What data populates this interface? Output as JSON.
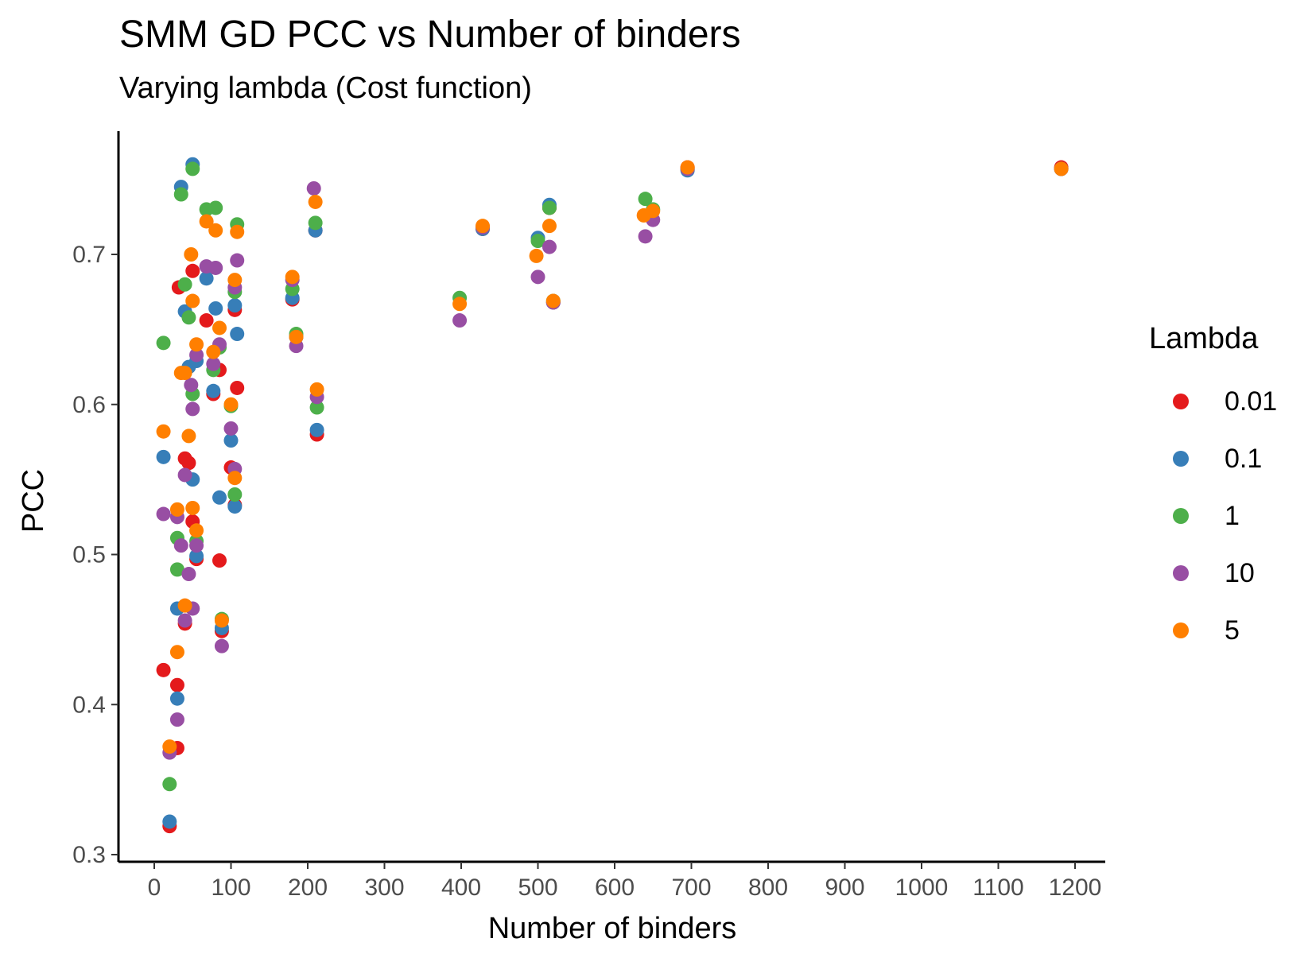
{
  "chart_data": {
    "type": "scatter",
    "title": "SMM GD PCC vs Number of binders",
    "subtitle": "Varying lambda (Cost function)",
    "xlabel": "Number of binders",
    "ylabel": "PCC",
    "xlim": [
      -40,
      1230
    ],
    "ylim": [
      0.29,
      0.79
    ],
    "xticks": [
      0,
      100,
      200,
      300,
      400,
      500,
      600,
      700,
      800,
      900,
      1000,
      1100,
      1200
    ],
    "xtick_labels": [
      "0",
      "100",
      "200",
      "300",
      "400",
      "500",
      "600",
      "700",
      "800",
      "900",
      "1000",
      "1100",
      "1200"
    ],
    "yticks": [
      0.3,
      0.4,
      0.5,
      0.6,
      0.7
    ],
    "ytick_labels": [
      "0.3",
      "0.4",
      "0.5",
      "0.6",
      "0.7"
    ],
    "grid": false,
    "legend_title": "Lambda",
    "legend_position": "right",
    "series": [
      {
        "name": "0.01",
        "color": "#E41A1C",
        "points": [
          [
            12,
            0.423
          ],
          [
            20,
            0.319
          ],
          [
            30,
            0.413
          ],
          [
            30,
            0.371
          ],
          [
            32,
            0.678
          ],
          [
            40,
            0.564
          ],
          [
            40,
            0.454
          ],
          [
            45,
            0.561
          ],
          [
            50,
            0.689
          ],
          [
            50,
            0.522
          ],
          [
            55,
            0.497
          ],
          [
            68,
            0.656
          ],
          [
            77,
            0.607
          ],
          [
            85,
            0.623
          ],
          [
            85,
            0.496
          ],
          [
            88,
            0.449
          ],
          [
            100,
            0.558
          ],
          [
            105,
            0.533
          ],
          [
            105,
            0.663
          ],
          [
            108,
            0.611
          ],
          [
            180,
            0.67
          ],
          [
            185,
            0.645
          ],
          [
            210,
            0.716
          ],
          [
            212,
            0.58
          ],
          [
            428,
            0.717
          ],
          [
            515,
            0.731
          ],
          [
            520,
            0.668
          ],
          [
            695,
            0.758
          ],
          [
            1182,
            0.758
          ]
        ]
      },
      {
        "name": "0.1",
        "color": "#377EB8",
        "points": [
          [
            12,
            0.565
          ],
          [
            20,
            0.322
          ],
          [
            30,
            0.404
          ],
          [
            30,
            0.464
          ],
          [
            35,
            0.745
          ],
          [
            40,
            0.662
          ],
          [
            45,
            0.625
          ],
          [
            50,
            0.55
          ],
          [
            50,
            0.76
          ],
          [
            55,
            0.499
          ],
          [
            55,
            0.629
          ],
          [
            68,
            0.684
          ],
          [
            77,
            0.609
          ],
          [
            80,
            0.664
          ],
          [
            85,
            0.538
          ],
          [
            88,
            0.451
          ],
          [
            100,
            0.576
          ],
          [
            105,
            0.532
          ],
          [
            105,
            0.666
          ],
          [
            108,
            0.647
          ],
          [
            180,
            0.671
          ],
          [
            185,
            0.645
          ],
          [
            210,
            0.716
          ],
          [
            212,
            0.583
          ],
          [
            428,
            0.717
          ],
          [
            500,
            0.711
          ],
          [
            515,
            0.733
          ],
          [
            520,
            0.668
          ],
          [
            695,
            0.756
          ],
          [
            1182,
            0.757
          ]
        ]
      },
      {
        "name": "1",
        "color": "#4DAF4A",
        "points": [
          [
            12,
            0.641
          ],
          [
            20,
            0.347
          ],
          [
            30,
            0.511
          ],
          [
            30,
            0.49
          ],
          [
            35,
            0.74
          ],
          [
            40,
            0.68
          ],
          [
            45,
            0.658
          ],
          [
            50,
            0.607
          ],
          [
            50,
            0.757
          ],
          [
            55,
            0.509
          ],
          [
            68,
            0.73
          ],
          [
            77,
            0.623
          ],
          [
            80,
            0.731
          ],
          [
            85,
            0.638
          ],
          [
            88,
            0.457
          ],
          [
            100,
            0.599
          ],
          [
            105,
            0.54
          ],
          [
            105,
            0.675
          ],
          [
            108,
            0.72
          ],
          [
            180,
            0.677
          ],
          [
            185,
            0.647
          ],
          [
            210,
            0.721
          ],
          [
            212,
            0.598
          ],
          [
            398,
            0.671
          ],
          [
            428,
            0.718
          ],
          [
            500,
            0.709
          ],
          [
            515,
            0.731
          ],
          [
            520,
            0.669
          ],
          [
            640,
            0.737
          ],
          [
            650,
            0.73
          ],
          [
            695,
            0.757
          ],
          [
            1182,
            0.757
          ]
        ]
      },
      {
        "name": "10",
        "color": "#984EA3",
        "points": [
          [
            12,
            0.527
          ],
          [
            20,
            0.368
          ],
          [
            30,
            0.39
          ],
          [
            30,
            0.525
          ],
          [
            35,
            0.506
          ],
          [
            40,
            0.553
          ],
          [
            40,
            0.456
          ],
          [
            45,
            0.487
          ],
          [
            48,
            0.613
          ],
          [
            50,
            0.597
          ],
          [
            50,
            0.464
          ],
          [
            55,
            0.506
          ],
          [
            55,
            0.633
          ],
          [
            68,
            0.692
          ],
          [
            77,
            0.627
          ],
          [
            80,
            0.691
          ],
          [
            85,
            0.64
          ],
          [
            88,
            0.439
          ],
          [
            100,
            0.584
          ],
          [
            105,
            0.557
          ],
          [
            105,
            0.678
          ],
          [
            108,
            0.696
          ],
          [
            180,
            0.683
          ],
          [
            185,
            0.639
          ],
          [
            208,
            0.744
          ],
          [
            212,
            0.605
          ],
          [
            398,
            0.656
          ],
          [
            428,
            0.718
          ],
          [
            500,
            0.685
          ],
          [
            515,
            0.705
          ],
          [
            520,
            0.668
          ],
          [
            640,
            0.712
          ],
          [
            650,
            0.723
          ],
          [
            695,
            0.757
          ],
          [
            1182,
            0.757
          ]
        ]
      },
      {
        "name": "5",
        "color": "#FF7F00",
        "points": [
          [
            12,
            0.582
          ],
          [
            20,
            0.372
          ],
          [
            30,
            0.435
          ],
          [
            30,
            0.53
          ],
          [
            35,
            0.621
          ],
          [
            40,
            0.621
          ],
          [
            40,
            0.466
          ],
          [
            45,
            0.579
          ],
          [
            48,
            0.7
          ],
          [
            50,
            0.669
          ],
          [
            50,
            0.531
          ],
          [
            55,
            0.516
          ],
          [
            55,
            0.64
          ],
          [
            68,
            0.722
          ],
          [
            77,
            0.635
          ],
          [
            80,
            0.716
          ],
          [
            85,
            0.651
          ],
          [
            88,
            0.456
          ],
          [
            100,
            0.6
          ],
          [
            105,
            0.551
          ],
          [
            105,
            0.683
          ],
          [
            108,
            0.715
          ],
          [
            180,
            0.685
          ],
          [
            185,
            0.645
          ],
          [
            210,
            0.735
          ],
          [
            212,
            0.61
          ],
          [
            398,
            0.667
          ],
          [
            428,
            0.719
          ],
          [
            498,
            0.699
          ],
          [
            515,
            0.719
          ],
          [
            520,
            0.669
          ],
          [
            638,
            0.726
          ],
          [
            650,
            0.729
          ],
          [
            695,
            0.758
          ],
          [
            1182,
            0.757
          ]
        ]
      }
    ]
  }
}
